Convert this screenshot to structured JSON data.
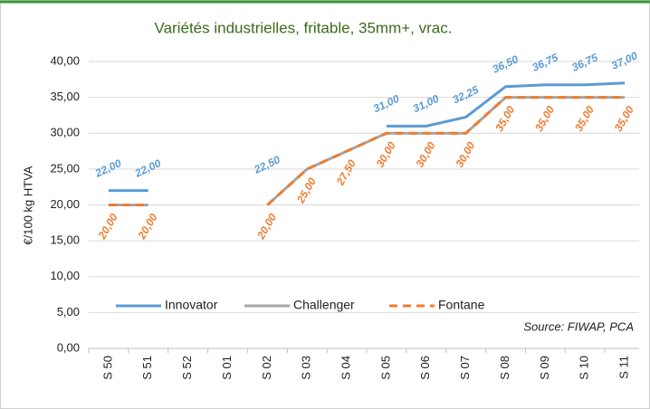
{
  "chart_data": {
    "type": "line",
    "title": "Variétés industrielles, fritable, 35mm+, vrac.",
    "y_label": "€/100 kg HTVA",
    "annotation": "Source: FIWAP, PCA",
    "categories": [
      "S 50",
      "S 51",
      "S 52",
      "S 01",
      "S 02",
      "S 03",
      "S 04",
      "S 05",
      "S 06",
      "S 07",
      "S 08",
      "S 09",
      "S 10",
      "S 11"
    ],
    "series": [
      {
        "name": "Innovator",
        "color": "#5b9bd5",
        "dash": false,
        "label_side": "above",
        "values": [
          22,
          22,
          null,
          null,
          22.5,
          null,
          null,
          31,
          31,
          32.25,
          36.5,
          36.75,
          36.75,
          37
        ],
        "value_labels": [
          "22,00",
          "22,00",
          null,
          null,
          "22,50",
          null,
          null,
          "31,00",
          "31,00",
          "32,25",
          "36,50",
          "36,75",
          "36,75",
          "37,00"
        ]
      },
      {
        "name": "Challenger",
        "color": "#a5a5a5",
        "dash": false,
        "values": [
          20,
          20,
          null,
          null,
          20,
          25,
          27.5,
          30,
          30,
          30,
          35,
          35,
          35,
          35
        ]
      },
      {
        "name": "Fontane",
        "color": "#ed7d31",
        "dash": true,
        "label_side": "below",
        "values": [
          20,
          20,
          null,
          null,
          20,
          25,
          27.5,
          30,
          30,
          30,
          35,
          35,
          35,
          35
        ],
        "value_labels": [
          "20,00",
          "20,00",
          null,
          null,
          "20,00",
          "25,00",
          "27,50",
          "30,00",
          "30,00",
          "30,00",
          "35,00",
          "35,00",
          "35,00",
          "35,00"
        ]
      }
    ],
    "ylim": [
      0,
      40
    ],
    "yticks": [
      {
        "value": 0,
        "label": "0,00"
      },
      {
        "value": 5,
        "label": "5,00"
      },
      {
        "value": 10,
        "label": "10,00"
      },
      {
        "value": 15,
        "label": "15,00"
      },
      {
        "value": 20,
        "label": "20,00"
      },
      {
        "value": 25,
        "label": "25,00"
      },
      {
        "value": 30,
        "label": "30,00"
      },
      {
        "value": 35,
        "label": "35,00"
      },
      {
        "value": 40,
        "label": "40,00"
      }
    ],
    "grid": true,
    "legend": "bottom-left"
  }
}
